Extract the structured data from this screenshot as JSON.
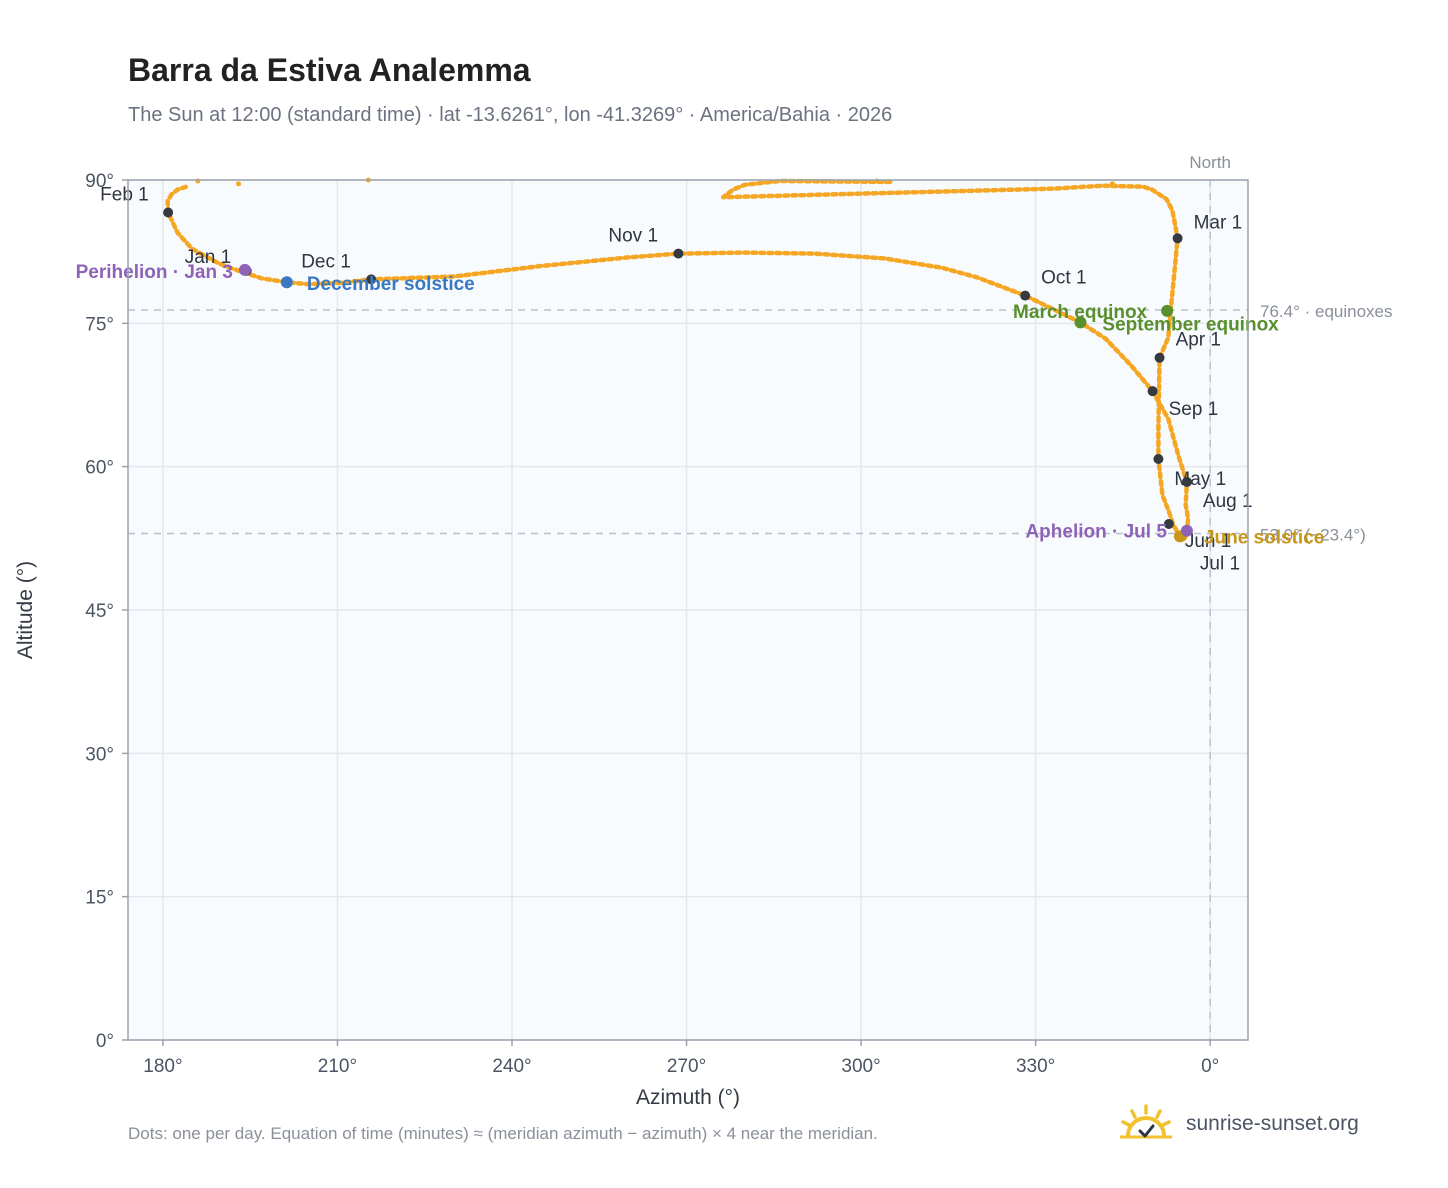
{
  "title": "Barra da Estiva Analemma",
  "subtitle": "The Sun at 12:00 (standard time) · lat -13.6261°, lon -41.3269° · America/Bahia · 2026",
  "footnote": "Dots: one per day. Equation of time (minutes) ≈ (meridian azimuth − azimuth) × 4 near the meridian.",
  "brand": "sunrise-sunset.org",
  "colors": {
    "curve": "#f5a623",
    "month_dot": "#343a40",
    "perihelion": "#8e63b5",
    "december_solstice": "#3a78c2",
    "equinox": "#5a8f2e",
    "june_solstice": "#c8961a",
    "aphelion": "#8e63b5",
    "grid": "#e3e8ee",
    "plot_bg": "#f8fbfe",
    "axis": "#9aa3ad",
    "ref_line": "#b9c2cc"
  },
  "chart_data": {
    "type": "scatter",
    "xlabel": "Azimuth (°)",
    "ylabel": "Altitude (°)",
    "x_axis_reversed": true,
    "xlim": [
      186,
      -6.5
    ],
    "ylim": [
      0,
      90
    ],
    "x_ticks": [
      {
        "value": 180,
        "label": "180°"
      },
      {
        "value": 150,
        "label": "210°"
      },
      {
        "value": 120,
        "label": "240°"
      },
      {
        "value": 90,
        "label": "270°"
      },
      {
        "value": 60,
        "label": "300°"
      },
      {
        "value": 30,
        "label": "330°"
      },
      {
        "value": 0,
        "label": "0°"
      }
    ],
    "y_ticks": [
      {
        "value": 0,
        "label": "0°"
      },
      {
        "value": 15,
        "label": "15°"
      },
      {
        "value": 30,
        "label": "30°"
      },
      {
        "value": 45,
        "label": "45°"
      },
      {
        "value": 60,
        "label": "60°"
      },
      {
        "value": 75,
        "label": "75°"
      },
      {
        "value": 90,
        "label": "90°"
      }
    ],
    "grid": true,
    "north_line": {
      "x": 0,
      "label": "North"
    },
    "reference_lines": [
      {
        "y": 76.4,
        "label": "76.4° · equinoxes"
      },
      {
        "y": 53.0,
        "label": "53.0° (−23.4°)"
      }
    ],
    "curve_path": [
      [
        55,
        89.8
      ],
      [
        74,
        89.9
      ],
      [
        80,
        89.5
      ],
      [
        82,
        89.0
      ],
      [
        83.7,
        88.2
      ],
      [
        26.7,
        89.1
      ],
      [
        18.5,
        89.4
      ],
      [
        11.5,
        89.3
      ],
      [
        10,
        89.0
      ],
      [
        7.5,
        88.0
      ],
      [
        6.5,
        86.8
      ],
      [
        5.6,
        83.9
      ],
      [
        6.2,
        80.0
      ],
      [
        6.8,
        76.3
      ],
      [
        7.2,
        73.5
      ],
      [
        8.7,
        71.4
      ],
      [
        8.8,
        68.0
      ],
      [
        8.9,
        64.0
      ],
      [
        8.9,
        60.8
      ],
      [
        8.2,
        57.0
      ],
      [
        7.1,
        55.3
      ],
      [
        6.4,
        54.0
      ],
      [
        5.2,
        52.7
      ],
      [
        4.6,
        52.4
      ],
      [
        4.3,
        52.6
      ],
      [
        4.0,
        53.2
      ],
      [
        3.8,
        54.6
      ],
      [
        4.2,
        56.0
      ],
      [
        4.0,
        58.4
      ],
      [
        5.4,
        61.0
      ],
      [
        7.2,
        65.0
      ],
      [
        9.9,
        67.9
      ],
      [
        13.6,
        70.6
      ],
      [
        18.0,
        73.4
      ],
      [
        22.3,
        75.1
      ],
      [
        31.8,
        77.9
      ],
      [
        40.0,
        79.8
      ],
      [
        46.0,
        80.8
      ],
      [
        56.0,
        81.8
      ],
      [
        68.0,
        82.3
      ],
      [
        80.0,
        82.4
      ],
      [
        91.4,
        82.3
      ],
      [
        100.0,
        81.9
      ],
      [
        115.0,
        81.0
      ],
      [
        130.0,
        79.9
      ],
      [
        144.2,
        79.6
      ],
      [
        150.0,
        79.2
      ],
      [
        155.0,
        79.1
      ],
      [
        158.7,
        79.3
      ],
      [
        163.0,
        79.7
      ],
      [
        166.0,
        80.3
      ],
      [
        168.4,
        80.8
      ],
      [
        170.5,
        81.3
      ],
      [
        175.0,
        82.8
      ],
      [
        177.5,
        84.5
      ],
      [
        179.1,
        86.6
      ],
      [
        179.2,
        87.8
      ],
      [
        178.5,
        88.5
      ],
      [
        177.5,
        89.0
      ],
      [
        176.0,
        89.3
      ]
    ],
    "dotted_gaps": [
      {
        "x": 174.0,
        "y": 89.9
      },
      {
        "x": 167.0,
        "y": 89.6
      },
      {
        "x": 144.7,
        "y": 90.0
      },
      {
        "x": 57.3,
        "y": 89.9
      },
      {
        "x": 16.8,
        "y": 89.6
      }
    ],
    "month_markers": [
      {
        "label": "Jan 1",
        "x": 165.6,
        "y": 80.5
      },
      {
        "label": "Feb 1",
        "x": 179.1,
        "y": 86.6
      },
      {
        "label": "Mar 1",
        "x": 5.6,
        "y": 83.9
      },
      {
        "label": "Apr 1",
        "x": 8.7,
        "y": 71.4
      },
      {
        "label": "May 1",
        "x": 8.9,
        "y": 60.8
      },
      {
        "label": "Jun 1",
        "x": 7.1,
        "y": 54.0
      },
      {
        "label": "Jul 1",
        "x": 5.2,
        "y": 52.7
      },
      {
        "label": "Aug 1",
        "x": 4.0,
        "y": 58.4
      },
      {
        "label": "Sep 1",
        "x": 9.9,
        "y": 67.9
      },
      {
        "label": "Oct 1",
        "x": 31.8,
        "y": 77.9
      },
      {
        "label": "Nov 1",
        "x": 91.4,
        "y": 82.3
      },
      {
        "label": "Dec 1",
        "x": 144.2,
        "y": 79.6
      }
    ],
    "events": [
      {
        "label": "Perihelion · Jan 3",
        "x": 165.9,
        "y": 80.6,
        "color_key": "perihelion"
      },
      {
        "label": "December solstice",
        "x": 158.7,
        "y": 79.3,
        "color_key": "december_solstice"
      },
      {
        "label": "March equinox",
        "x": 7.4,
        "y": 76.3,
        "color_key": "equinox"
      },
      {
        "label": "September equinox",
        "x": 22.3,
        "y": 75.1,
        "color_key": "equinox"
      },
      {
        "label": "June solstice",
        "x": 5.2,
        "y": 52.7,
        "color_key": "june_solstice"
      },
      {
        "label": "Aphelion · Jul 5",
        "x": 4.0,
        "y": 53.3,
        "color_key": "aphelion"
      }
    ]
  }
}
